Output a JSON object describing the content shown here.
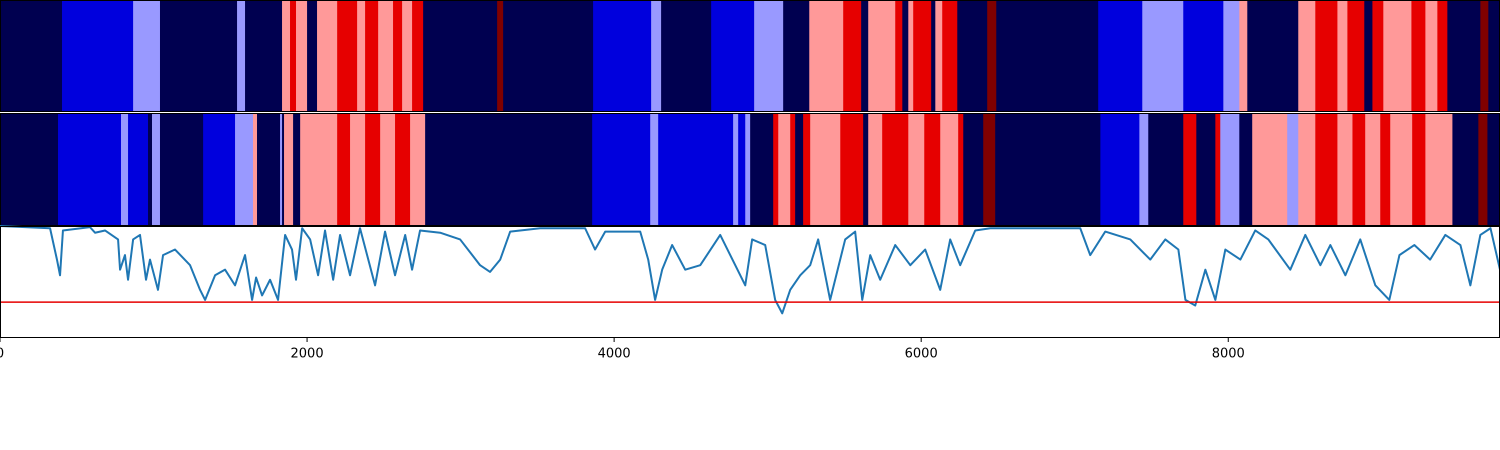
{
  "chart_data": [
    {
      "type": "strip",
      "xlim": [
        0,
        9770
      ],
      "breaks": [
        0,
        404,
        867,
        1042,
        1544,
        1596,
        1837,
        1889,
        1928,
        2000,
        2065,
        2196,
        2326,
        2378,
        2463,
        2560,
        2619,
        2684,
        2756,
        3238,
        3277,
        3863,
        4241,
        4306,
        4632,
        4912,
        5101,
        5271,
        5492,
        5609,
        5655,
        5831,
        5877,
        5916,
        5948,
        6065,
        6092,
        6137,
        6235,
        6430,
        6489,
        7153,
        7440,
        7707,
        7968,
        8072,
        8124,
        8456,
        8567,
        8711,
        8776,
        8886,
        8939,
        9010,
        9193,
        9284,
        9362,
        9427,
        9642,
        9694,
        9770
      ],
      "colors": [
        "#000050",
        "#0000dd",
        "#9999ff",
        "#000050",
        "#9999ff",
        "#000050",
        "#ff9999",
        "#e60000",
        "#ff9999",
        "#000050",
        "#ff9999",
        "#e60000",
        "#ff9999",
        "#e60000",
        "#ff9999",
        "#e60000",
        "#ff9999",
        "#e60000",
        "#000050",
        "#800000",
        "#000050",
        "#0000dd",
        "#9999ff",
        "#000050",
        "#0000dd",
        "#9999ff",
        "#000050",
        "#ff9999",
        "#e60000",
        "#000050",
        "#ff9999",
        "#e60000",
        "#000050",
        "#ff9999",
        "#e60000",
        "#000050",
        "#ff9999",
        "#e60000",
        "#000050",
        "#800000",
        "#000050",
        "#0000dd",
        "#9999ff",
        "#0000dd",
        "#9999ff",
        "#ff9999",
        "#000050",
        "#ff9999",
        "#e60000",
        "#ff9999",
        "#e60000",
        "#000050",
        "#e60000",
        "#ff9999",
        "#e60000",
        "#ff9999",
        "#e60000",
        "#000050",
        "#800000",
        "#000050"
      ]
    },
    {
      "type": "strip",
      "xlim": [
        0,
        9770
      ],
      "breaks": [
        0,
        378,
        788,
        834,
        964,
        990,
        1042,
        1323,
        1531,
        1648,
        1674,
        1824,
        1837,
        1850,
        1909,
        1955,
        2196,
        2280,
        2378,
        2476,
        2573,
        2671,
        2769,
        3857,
        4235,
        4287,
        4775,
        4808,
        4854,
        4886,
        5036,
        5069,
        5147,
        5179,
        5231,
        5277,
        5473,
        5622,
        5655,
        5746,
        5916,
        6020,
        6124,
        6241,
        6274,
        6404,
        6482,
        7167,
        7421,
        7479,
        7707,
        7792,
        7916,
        7948,
        8072,
        8156,
        8384,
        8456,
        8567,
        8711,
        8809,
        8892,
        8990,
        9055,
        9198,
        9284,
        9460,
        9629,
        9688,
        9770
      ],
      "colors": [
        "#000050",
        "#0000dd",
        "#9999ff",
        "#0000dd",
        "#000050",
        "#9999ff",
        "#000050",
        "#0000dd",
        "#9999ff",
        "#ff9999",
        "#000050",
        "#9999ff",
        "#000050",
        "#ff9999",
        "#000050",
        "#ff9999",
        "#e60000",
        "#ff9999",
        "#e60000",
        "#ff9999",
        "#e60000",
        "#ff9999",
        "#000050",
        "#0000dd",
        "#9999ff",
        "#0000dd",
        "#9999ff",
        "#0000dd",
        "#9999ff",
        "#000050",
        "#e60000",
        "#ff9999",
        "#e60000",
        "#000050",
        "#e60000",
        "#ff9999",
        "#e60000",
        "#000050",
        "#ff9999",
        "#e60000",
        "#ff9999",
        "#e60000",
        "#ff9999",
        "#e60000",
        "#000050",
        "#800000",
        "#000050",
        "#0000dd",
        "#9999ff",
        "#000050",
        "#e60000",
        "#000050",
        "#e60000",
        "#9999ff",
        "#000050",
        "#ff9999",
        "#9999ff",
        "#ff9999",
        "#e60000",
        "#ff9999",
        "#e60000",
        "#ff9999",
        "#e60000",
        "#ff9999",
        "#e60000",
        "#ff9999",
        "#000050",
        "#800000",
        "#000050"
      ]
    },
    {
      "type": "line",
      "xlim": [
        0,
        9770
      ],
      "ylim": [
        0,
        1
      ],
      "xticks": [
        0,
        2000,
        4000,
        6000,
        8000
      ],
      "color": "#1f77b4",
      "x": [
        0,
        326,
        371,
        391,
        410,
        586,
        619,
        684,
        769,
        782,
        814,
        834,
        867,
        912,
        951,
        977,
        1029,
        1062,
        1140,
        1238,
        1303,
        1336,
        1401,
        1466,
        1531,
        1596,
        1642,
        1668,
        1707,
        1759,
        1811,
        1857,
        1902,
        1928,
        1968,
        2020,
        2072,
        2117,
        2170,
        2215,
        2280,
        2345,
        2443,
        2508,
        2573,
        2639,
        2684,
        2736,
        2867,
        2997,
        3127,
        3192,
        3258,
        3323,
        3518,
        3811,
        3876,
        3942,
        4170,
        4222,
        4267,
        4313,
        4378,
        4463,
        4561,
        4691,
        4789,
        4854,
        4899,
        4984,
        5049,
        5095,
        5147,
        5212,
        5277,
        5329,
        5407,
        5505,
        5570,
        5616,
        5668,
        5733,
        5831,
        5929,
        6026,
        6124,
        6189,
        6254,
        6352,
        6450,
        7036,
        7101,
        7199,
        7362,
        7492,
        7590,
        7675,
        7721,
        7785,
        7851,
        7916,
        7981,
        8079,
        8176,
        8261,
        8404,
        8502,
        8600,
        8665,
        8763,
        8860,
        8958,
        9049,
        9115,
        9212,
        9315,
        9414,
        9512,
        9577,
        9642,
        9708,
        9770
      ],
      "values": [
        1.0,
        0.98,
        0.7,
        0.56,
        0.96,
        0.99,
        0.94,
        0.96,
        0.88,
        0.61,
        0.74,
        0.52,
        0.88,
        0.92,
        0.52,
        0.7,
        0.43,
        0.74,
        0.79,
        0.65,
        0.43,
        0.34,
        0.56,
        0.61,
        0.47,
        0.74,
        0.34,
        0.54,
        0.38,
        0.52,
        0.34,
        0.92,
        0.79,
        0.52,
        0.98,
        0.88,
        0.56,
        0.96,
        0.52,
        0.92,
        0.56,
        0.98,
        0.47,
        0.95,
        0.56,
        0.92,
        0.61,
        0.96,
        0.94,
        0.88,
        0.65,
        0.59,
        0.7,
        0.95,
        0.98,
        0.98,
        0.79,
        0.95,
        0.95,
        0.7,
        0.34,
        0.61,
        0.83,
        0.61,
        0.65,
        0.92,
        0.65,
        0.47,
        0.88,
        0.83,
        0.34,
        0.22,
        0.43,
        0.56,
        0.65,
        0.88,
        0.34,
        0.88,
        0.95,
        0.34,
        0.74,
        0.52,
        0.83,
        0.65,
        0.79,
        0.43,
        0.88,
        0.65,
        0.96,
        0.98,
        0.98,
        0.74,
        0.95,
        0.88,
        0.7,
        0.88,
        0.79,
        0.34,
        0.29,
        0.61,
        0.34,
        0.79,
        0.7,
        0.96,
        0.88,
        0.61,
        0.92,
        0.65,
        0.83,
        0.56,
        0.88,
        0.47,
        0.34,
        0.74,
        0.83,
        0.7,
        0.92,
        0.83,
        0.47,
        0.92,
        0.98,
        0.61
      ],
      "hline": {
        "value": 0.32,
        "color": "#e60000"
      }
    }
  ]
}
